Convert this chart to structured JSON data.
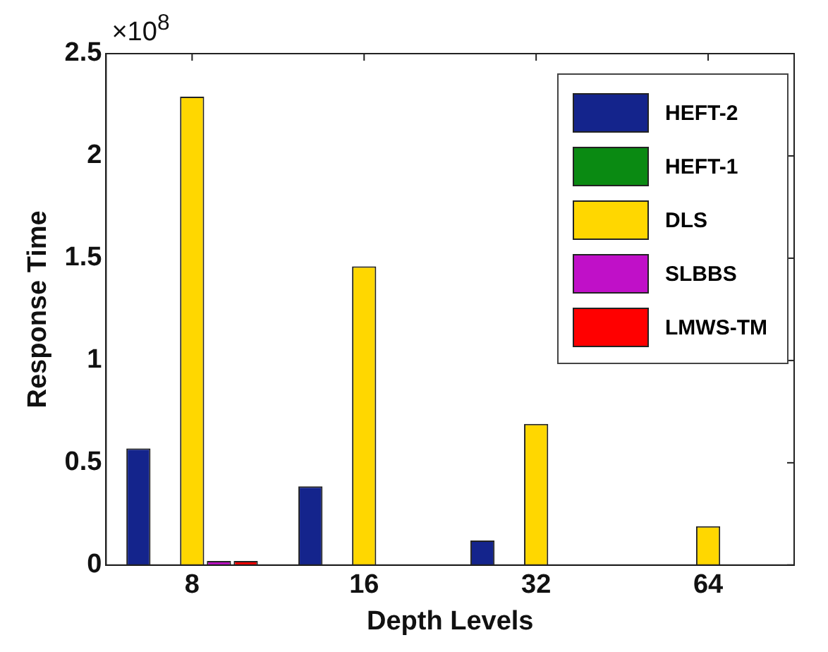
{
  "chart_data": {
    "type": "bar",
    "xlabel": "Depth Levels",
    "ylabel": "Response Time",
    "annotations": [
      "×10$^{8}$"
    ],
    "categories": [
      "8",
      "16",
      "32",
      "64"
    ],
    "series": [
      {
        "name": "HEFT-2",
        "color": "#14248c",
        "values": [
          0.57,
          0.385,
          0.12,
          0
        ]
      },
      {
        "name": "HEFT-1",
        "color": "#0a8a12",
        "values": [
          0,
          0,
          0,
          0
        ]
      },
      {
        "name": "DLS",
        "color": "#ffd700",
        "values": [
          2.29,
          1.46,
          0.69,
          0.19
        ]
      },
      {
        "name": "SLBBS",
        "color": "#c010c8",
        "values": [
          0.02,
          0,
          0,
          0
        ]
      },
      {
        "name": "LMWS-TM",
        "color": "#ff0000",
        "values": [
          0.02,
          0,
          0,
          0
        ]
      }
    ],
    "ylim": [
      0,
      2.5
    ],
    "yticks": [
      0,
      0.5,
      1,
      1.5,
      2,
      2.5
    ],
    "grid": false,
    "legend": "top right"
  }
}
